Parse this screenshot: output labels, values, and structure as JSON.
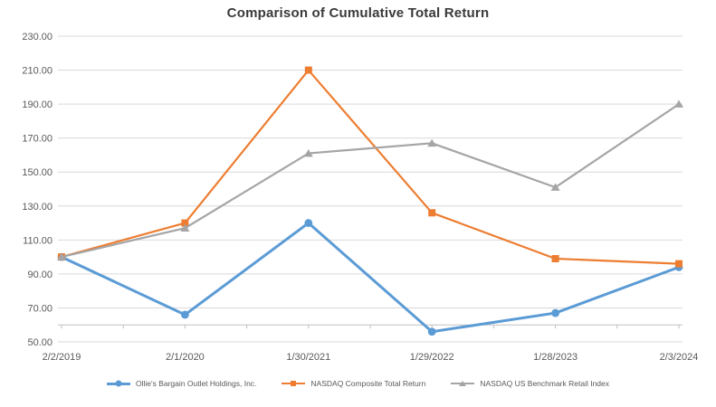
{
  "chart_data": {
    "type": "line",
    "title": "Comparison of Cumulative Total Return",
    "categories": [
      "2/2/2019",
      "2/1/2020",
      "1/30/2021",
      "1/29/2022",
      "1/28/2023",
      "2/3/2024"
    ],
    "series": [
      {
        "name": "Ollie's Bargain Outlet Holdings, Inc.",
        "values": [
          100,
          66,
          120,
          56,
          67,
          94
        ],
        "color": "#5B9BD5",
        "marker": "circle",
        "line_width": 3
      },
      {
        "name": "NASDAQ Composite Total Return",
        "values": [
          100,
          120,
          210,
          126,
          99,
          96
        ],
        "color": "#ED7D31",
        "marker": "square",
        "line_width": 2.2
      },
      {
        "name": "NASDAQ US Benchmark Retail Index",
        "values": [
          100,
          117,
          161,
          167,
          141,
          190
        ],
        "color": "#A5A5A5",
        "marker": "triangle",
        "line_width": 2.2
      }
    ],
    "ylim": [
      50,
      230
    ],
    "ytick_step": 20,
    "ytick_labels": [
      "230.00",
      "210.00",
      "190.00",
      "170.00",
      "150.00",
      "130.00",
      "110.00",
      "90.00",
      "70.00",
      "50.00"
    ],
    "grid": true,
    "legend_position": "bottom",
    "gridline_color": "#D9D9D9",
    "axis_color": "#BFBFBF",
    "label_color": "#595959",
    "title_color": "#3a3a3a"
  }
}
